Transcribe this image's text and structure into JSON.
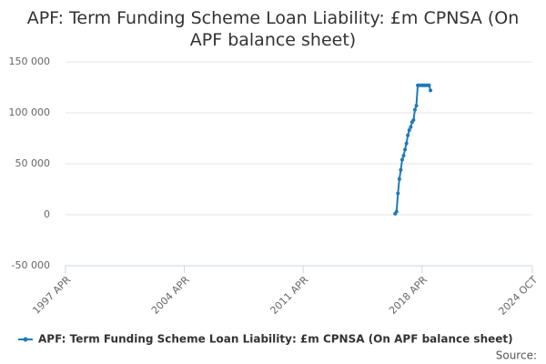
{
  "chart_data": {
    "type": "line",
    "title": "APF: Term Funding Scheme Loan Liability: £m CPNSA (On APF balance sheet)",
    "x": [
      "2016 SEP",
      "2016 OCT",
      "2016 NOV",
      "2016 DEC",
      "2017 JAN",
      "2017 FEB",
      "2017 MAR",
      "2017 APR",
      "2017 MAY",
      "2017 JUN",
      "2017 JUL",
      "2017 AUG",
      "2017 SEP",
      "2017 OCT",
      "2017 NOV",
      "2017 DEC",
      "2018 JAN",
      "2018 FEB",
      "2018 MAR",
      "2018 APR",
      "2018 MAY",
      "2018 JUN",
      "2018 JUL",
      "2018 AUG",
      "2018 SEP",
      "2018 OCT"
    ],
    "series": [
      {
        "name": "APF: Term Funding Scheme Loan Liability: £m CPNSA (On APF balance sheet)",
        "color": "#1f7bb6",
        "values": [
          1000,
          3000,
          21000,
          35000,
          44000,
          54000,
          58000,
          64000,
          70000,
          78000,
          83000,
          86000,
          91000,
          93000,
          103000,
          107000,
          127000,
          127000,
          127000,
          127000,
          127000,
          127000,
          127000,
          127000,
          127000,
          122000
        ]
      }
    ],
    "xlim": [
      "1997 APR",
      "2024 OCT"
    ],
    "xticks": [
      "1997 APR",
      "2004 APR",
      "2011 APR",
      "2018 APR",
      "2024 OCT"
    ],
    "ylim": [
      -50000,
      150000
    ],
    "yticks": [
      {
        "value": -50000,
        "label": "-50 000"
      },
      0,
      {
        "value": 50000,
        "label": "50 000"
      },
      {
        "value": 100000,
        "label": "100 000"
      },
      {
        "value": 150000,
        "label": "150 000"
      }
    ],
    "grid": true,
    "source": "Source:"
  }
}
